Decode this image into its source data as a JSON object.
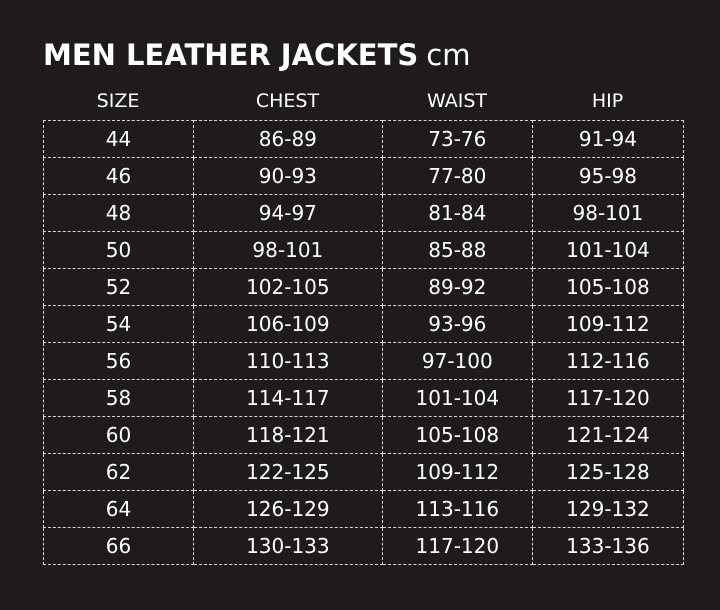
{
  "title": "MEN LEATHER JACKETS",
  "unit": "cm",
  "columns": [
    "SIZE",
    "CHEST",
    "WAIST",
    "HIP"
  ],
  "rows": [
    [
      "44",
      "86-89",
      "73-76",
      "91-94"
    ],
    [
      "46",
      "90-93",
      "77-80",
      "95-98"
    ],
    [
      "48",
      "94-97",
      "81-84",
      "98-101"
    ],
    [
      "50",
      "98-101",
      "85-88",
      "101-104"
    ],
    [
      "52",
      "102-105",
      "89-92",
      "105-108"
    ],
    [
      "54",
      "106-109",
      "93-96",
      "109-112"
    ],
    [
      "56",
      "110-113",
      "97-100",
      "112-116"
    ],
    [
      "58",
      "114-117",
      "101-104",
      "117-120"
    ],
    [
      "60",
      "118-121",
      "105-108",
      "121-124"
    ],
    [
      "62",
      "122-125",
      "109-112",
      "125-128"
    ],
    [
      "64",
      "126-129",
      "113-116",
      "129-132"
    ],
    [
      "66",
      "130-133",
      "117-120",
      "133-136"
    ]
  ]
}
